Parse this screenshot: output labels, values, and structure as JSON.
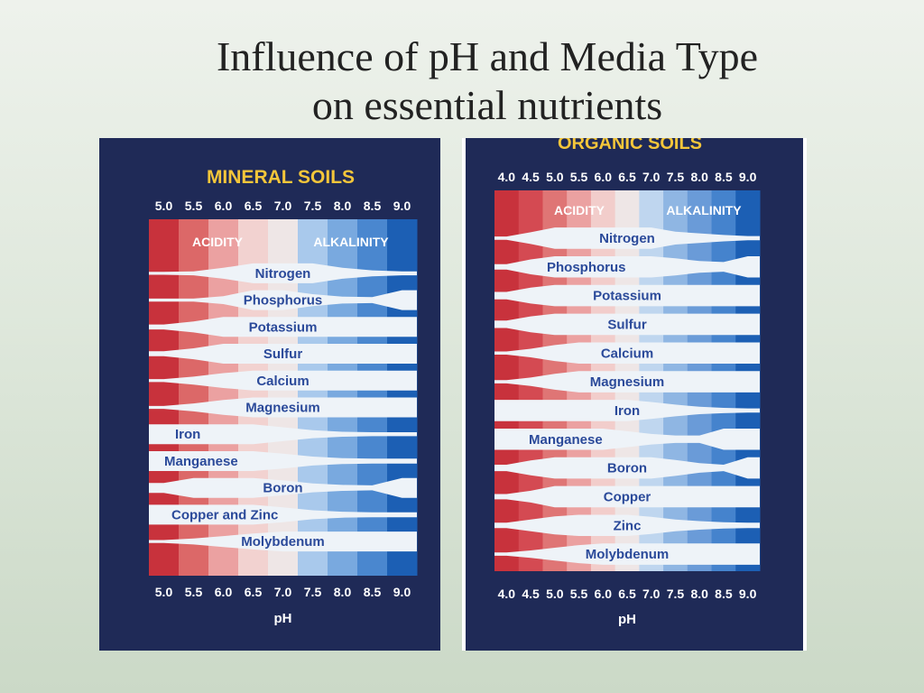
{
  "slide": {
    "title_line1": "Influence of pH and Media Type",
    "title_line2": "on essential nutrients"
  },
  "colors": {
    "background_panel": "#1f2a57",
    "heading_yellow": "#f4c63a",
    "ph_label_white": "#ffffff",
    "band_fill": "#eef3f8",
    "band_text": "#2b4a9a",
    "acid_strong": "#c8323c",
    "neutral": "#f0e6e4",
    "alk_strong": "#1c5fb4"
  },
  "mineral": {
    "heading": "MINERAL SOILS",
    "ph_ticks": [
      "5.0",
      "5.5",
      "6.0",
      "6.5",
      "7.0",
      "7.5",
      "8.0",
      "8.5",
      "9.0"
    ],
    "zone_left_label": "ACIDITY",
    "zone_right_label": "ALKALINITY",
    "axis_label": "pH",
    "nutrients": [
      {
        "name": "Nitrogen",
        "widths": [
          0.15,
          0.2,
          0.55,
          1.0,
          1.0,
          1.0,
          0.55,
          0.3,
          0.2
        ]
      },
      {
        "name": "Phosphorus",
        "widths": [
          0.15,
          0.15,
          0.4,
          1.0,
          1.0,
          0.6,
          0.35,
          0.3,
          1.0
        ]
      },
      {
        "name": "Potassium",
        "widths": [
          0.25,
          0.55,
          1.0,
          1.0,
          1.0,
          1.0,
          1.0,
          1.0,
          1.0
        ]
      },
      {
        "name": "Sulfur",
        "widths": [
          0.25,
          0.55,
          1.0,
          1.0,
          1.0,
          1.0,
          1.0,
          1.0,
          1.0
        ]
      },
      {
        "name": "Calcium",
        "widths": [
          0.15,
          0.4,
          0.75,
          1.0,
          1.0,
          1.0,
          1.0,
          1.0,
          1.0
        ]
      },
      {
        "name": "Magnesium",
        "widths": [
          0.15,
          0.4,
          0.75,
          1.0,
          1.0,
          1.0,
          1.0,
          1.0,
          1.0
        ]
      },
      {
        "name": "Iron",
        "widths": [
          1.0,
          1.0,
          1.0,
          1.0,
          0.7,
          0.4,
          0.25,
          0.2,
          0.2
        ]
      },
      {
        "name": "Manganese",
        "widths": [
          1.0,
          1.0,
          1.0,
          1.0,
          0.75,
          0.45,
          0.3,
          0.25,
          0.25
        ]
      },
      {
        "name": "Boron",
        "widths": [
          0.5,
          1.0,
          1.0,
          1.0,
          0.75,
          0.45,
          0.3,
          0.25,
          1.0
        ]
      },
      {
        "name": "Copper and Zinc",
        "widths": [
          1.0,
          1.0,
          1.0,
          1.0,
          0.75,
          0.45,
          0.3,
          0.25,
          0.25
        ]
      },
      {
        "name": "Molybdenum",
        "widths": [
          0.15,
          0.3,
          0.55,
          0.8,
          1.0,
          1.0,
          1.0,
          1.0,
          1.0
        ]
      }
    ]
  },
  "organic": {
    "heading": "ORGANIC SOILS",
    "ph_ticks": [
      "4.0",
      "4.5",
      "5.0",
      "5.5",
      "6.0",
      "6.5",
      "7.0",
      "7.5",
      "8.0",
      "8.5",
      "9.0"
    ],
    "zone_left_label": "ACIDITY",
    "zone_right_label": "ALKALINITY",
    "axis_label": "pH",
    "nutrients": [
      {
        "name": "Nitrogen",
        "widths": [
          0.15,
          0.55,
          1.0,
          1.0,
          1.0,
          1.0,
          1.0,
          0.6,
          0.45,
          0.3,
          0.2
        ]
      },
      {
        "name": "Phosphorus",
        "widths": [
          0.25,
          0.7,
          1.0,
          1.0,
          1.0,
          1.0,
          1.0,
          0.8,
          0.55,
          0.45,
          1.0
        ]
      },
      {
        "name": "Potassium",
        "widths": [
          0.35,
          0.75,
          1.0,
          1.0,
          1.0,
          1.0,
          1.0,
          1.0,
          1.0,
          1.0,
          1.0
        ]
      },
      {
        "name": "Sulfur",
        "widths": [
          0.35,
          0.75,
          1.0,
          1.0,
          1.0,
          1.0,
          1.0,
          1.0,
          1.0,
          1.0,
          1.0
        ]
      },
      {
        "name": "Calcium",
        "widths": [
          0.15,
          0.4,
          0.75,
          1.0,
          1.0,
          1.0,
          1.0,
          1.0,
          1.0,
          1.0,
          1.0
        ]
      },
      {
        "name": "Magnesium",
        "widths": [
          0.15,
          0.4,
          0.75,
          1.0,
          1.0,
          1.0,
          1.0,
          1.0,
          1.0,
          1.0,
          1.0
        ]
      },
      {
        "name": "Iron",
        "widths": [
          1.0,
          1.0,
          1.0,
          1.0,
          1.0,
          1.0,
          0.8,
          0.55,
          0.35,
          0.25,
          0.2
        ]
      },
      {
        "name": "Manganese",
        "widths": [
          1.0,
          1.0,
          1.0,
          1.0,
          1.0,
          0.75,
          0.5,
          0.35,
          0.35,
          1.0,
          1.0
        ]
      },
      {
        "name": "Boron",
        "widths": [
          0.3,
          0.7,
          1.0,
          1.0,
          1.0,
          1.0,
          1.0,
          0.75,
          0.45,
          0.3,
          1.0
        ]
      },
      {
        "name": "Copper",
        "widths": [
          0.25,
          0.55,
          1.0,
          1.0,
          1.0,
          1.0,
          1.0,
          1.0,
          1.0,
          1.0,
          1.0
        ]
      },
      {
        "name": "Zinc",
        "widths": [
          0.25,
          0.55,
          0.85,
          1.0,
          1.0,
          1.0,
          0.8,
          0.55,
          0.4,
          0.3,
          0.25
        ]
      },
      {
        "name": "Molybdenum",
        "widths": [
          0.15,
          0.35,
          0.6,
          0.85,
          1.0,
          1.0,
          1.0,
          1.0,
          1.0,
          1.0,
          1.0
        ]
      }
    ]
  }
}
